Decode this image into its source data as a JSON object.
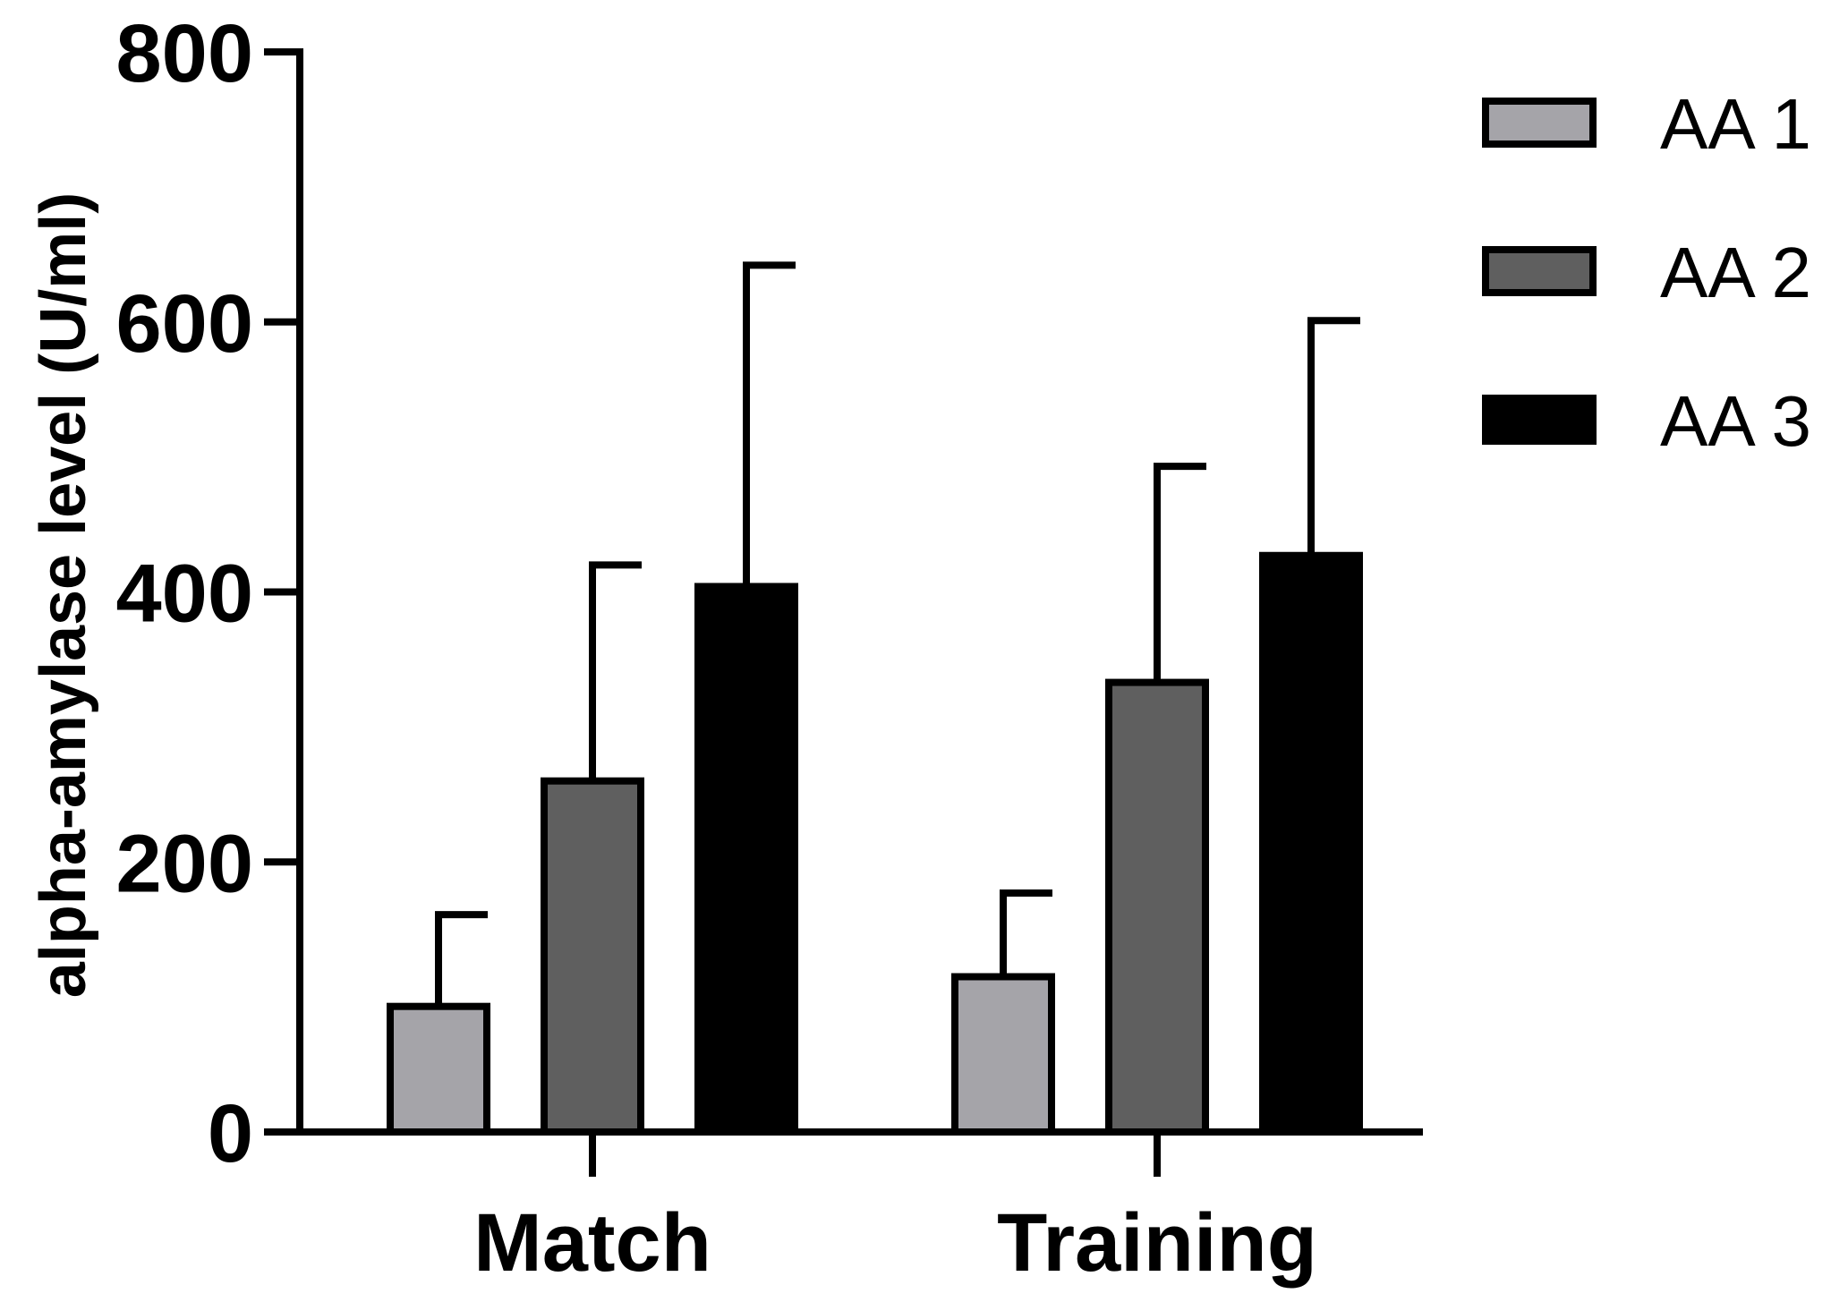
{
  "chart_data": {
    "type": "bar",
    "title": "",
    "xlabel": "",
    "ylabel": "alpha-amylase level (U/ml)",
    "ylim": [
      0,
      800
    ],
    "yticks": [
      "0",
      "200",
      "400",
      "600",
      "800"
    ],
    "categories": [
      "Match",
      "Training"
    ],
    "series": [
      {
        "name": "AA 1",
        "color": "#a5a4a9",
        "values": [
          93,
          115
        ],
        "error": [
          68,
          62
        ]
      },
      {
        "name": "AA 2",
        "color": "#5f5f5f",
        "values": [
          260,
          333
        ],
        "error": [
          160,
          160
        ]
      },
      {
        "name": "AA 3",
        "color": "#000000",
        "values": [
          404,
          427
        ],
        "error": [
          238,
          174
        ]
      }
    ],
    "legend_position": "top-right",
    "grid": false
  }
}
